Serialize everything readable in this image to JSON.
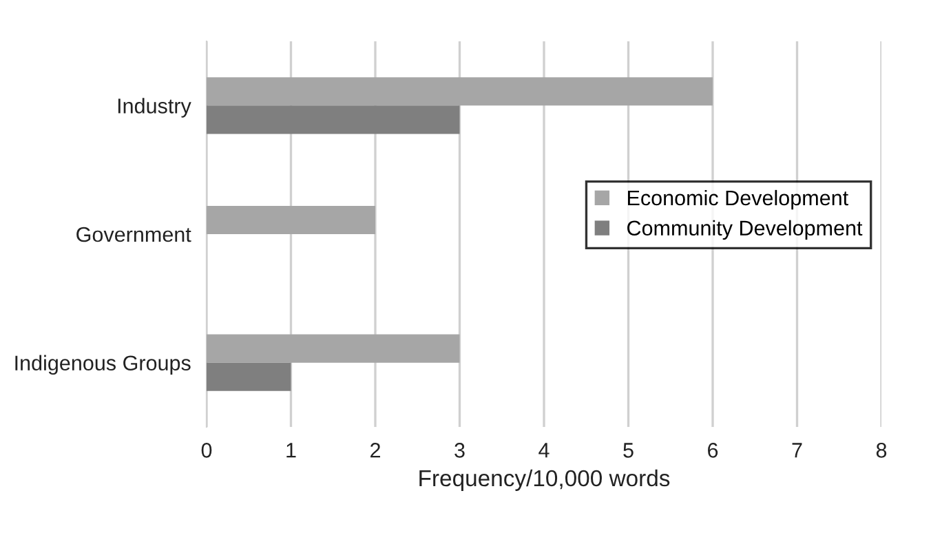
{
  "chart_data": {
    "type": "bar",
    "orientation": "horizontal",
    "xlabel": "Frequency/10,000 words",
    "categories": [
      "Industry",
      "Government",
      "Indigenous Groups"
    ],
    "series": [
      {
        "name": "Economic Development",
        "color": "#a6a6a6",
        "values": [
          6,
          2,
          3
        ]
      },
      {
        "name": "Community Development",
        "color": "#7f7f7f",
        "values": [
          3,
          null,
          1
        ]
      }
    ],
    "xlim": [
      0,
      8
    ],
    "xticks": [
      0,
      1,
      2,
      3,
      4,
      5,
      6,
      7,
      8
    ],
    "grid": "x",
    "legend": "right"
  }
}
